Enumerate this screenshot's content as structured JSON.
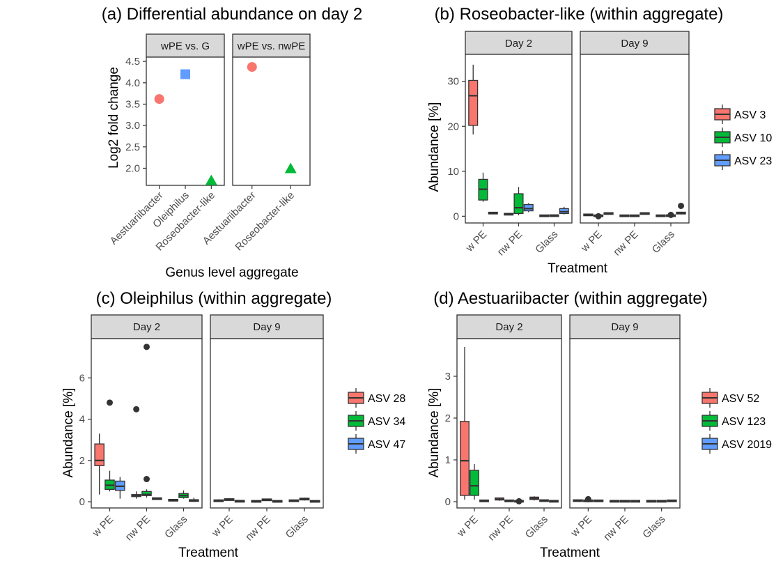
{
  "colors": {
    "red": "#F8766D",
    "green": "#00BA38",
    "blue": "#619CFF",
    "dark": "#333333",
    "strip": "#d9d9d9"
  },
  "chart_data": [
    {
      "id": "a",
      "type": "scatter",
      "title": "(a) Differential abundance on day 2",
      "xlabel": "Genus level aggregate",
      "ylabel": "Log2 fold change",
      "ylim": [
        1.6,
        4.6
      ],
      "yticks": [
        2.0,
        2.5,
        3.0,
        3.5,
        4.0,
        4.5
      ],
      "ytick_labels": [
        "2.0",
        "2.5",
        "3.0",
        "3.5",
        "4.0",
        "4.5"
      ],
      "facets": [
        {
          "label": "wPE vs. G",
          "categories": [
            "Aestuariibacter",
            "Oleiphilus",
            "Roseobacter-like"
          ],
          "points": [
            {
              "category": "Aestuariibacter",
              "y": 3.62,
              "shape": "circle",
              "color": "red"
            },
            {
              "category": "Oleiphilus",
              "y": 4.2,
              "shape": "square",
              "color": "blue"
            },
            {
              "category": "Roseobacter-like",
              "y": 1.72,
              "shape": "triangle",
              "color": "green"
            }
          ]
        },
        {
          "label": "wPE vs. nwPE",
          "categories": [
            "Aestuariibacter",
            "Roseobacter-like"
          ],
          "points": [
            {
              "category": "Aestuariibacter",
              "y": 4.37,
              "shape": "circle",
              "color": "red"
            },
            {
              "category": "Roseobacter-like",
              "y": 2.0,
              "shape": "triangle",
              "color": "green"
            }
          ]
        }
      ]
    },
    {
      "id": "b",
      "type": "box",
      "title": "(b) Roseobacter-like (within aggregate)",
      "xlabel": "Treatment",
      "ylabel": "Abundance [%]",
      "ylim": [
        -1.5,
        36
      ],
      "yticks": [
        0,
        10,
        20,
        30
      ],
      "ytick_labels": [
        "0",
        "10",
        "20",
        "30"
      ],
      "categories": [
        "w PE",
        "nw PE",
        "Glass"
      ],
      "legend": {
        "position": "right",
        "entries": [
          {
            "label": "ASV 3",
            "color": "red"
          },
          {
            "label": "ASV 10",
            "color": "green"
          },
          {
            "label": "ASV 23",
            "color": "blue"
          }
        ]
      },
      "facets": [
        {
          "label": "Day 2",
          "boxes": [
            {
              "category": "w PE",
              "series": "ASV 3",
              "min": 18.2,
              "q1": 20.2,
              "median": 26.8,
              "q3": 30.2,
              "max": 33.7
            },
            {
              "category": "w PE",
              "series": "ASV 10",
              "min": 3.2,
              "q1": 3.6,
              "median": 6,
              "q3": 8.2,
              "max": 9.7
            },
            {
              "category": "w PE",
              "series": "ASV 23",
              "min": 0.5,
              "q1": 0.6,
              "median": 0.7,
              "q3": 0.8,
              "max": 0.9
            },
            {
              "category": "nw PE",
              "series": "ASV 3",
              "min": 0.2,
              "q1": 0.3,
              "median": 0.5,
              "q3": 0.6,
              "max": 0.7
            },
            {
              "category": "nw PE",
              "series": "ASV 10",
              "min": 0.2,
              "q1": 0.6,
              "median": 1.9,
              "q3": 5,
              "max": 6.5
            },
            {
              "category": "nw PE",
              "series": "ASV 23",
              "min": 0.9,
              "q1": 1.2,
              "median": 1.7,
              "q3": 2.6,
              "max": 2.9
            },
            {
              "category": "Glass",
              "series": "ASV 3",
              "min": 0,
              "q1": 0.05,
              "median": 0.1,
              "q3": 0.15,
              "max": 0.2
            },
            {
              "category": "Glass",
              "series": "ASV 10",
              "min": 0,
              "q1": 0.05,
              "median": 0.1,
              "q3": 0.2,
              "max": 0.25
            },
            {
              "category": "Glass",
              "series": "ASV 23",
              "min": 0.4,
              "q1": 0.6,
              "median": 1,
              "q3": 1.7,
              "max": 2.1
            }
          ],
          "outliers": []
        },
        {
          "label": "Day 9",
          "boxes": [
            {
              "category": "w PE",
              "series": "ASV 3",
              "min": 0.1,
              "q1": 0.2,
              "median": 0.3,
              "q3": 0.4,
              "max": 0.5
            },
            {
              "category": "w PE",
              "series": "ASV 10",
              "min": 0,
              "q1": 0.05,
              "median": 0.1,
              "q3": 0.15,
              "max": 0.2
            },
            {
              "category": "w PE",
              "series": "ASV 23",
              "min": 0.4,
              "q1": 0.5,
              "median": 0.6,
              "q3": 0.7,
              "max": 0.8
            },
            {
              "category": "nw PE",
              "series": "ASV 3",
              "min": 0,
              "q1": 0.05,
              "median": 0.1,
              "q3": 0.15,
              "max": 0.2
            },
            {
              "category": "nw PE",
              "series": "ASV 10",
              "min": 0,
              "q1": 0.05,
              "median": 0.1,
              "q3": 0.15,
              "max": 0.2
            },
            {
              "category": "nw PE",
              "series": "ASV 23",
              "min": 0.4,
              "q1": 0.5,
              "median": 0.6,
              "q3": 0.7,
              "max": 0.8
            },
            {
              "category": "Glass",
              "series": "ASV 3",
              "min": 0,
              "q1": 0.05,
              "median": 0.1,
              "q3": 0.15,
              "max": 0.2
            },
            {
              "category": "Glass",
              "series": "ASV 10",
              "min": 0,
              "q1": 0.05,
              "median": 0.15,
              "q3": 0.2,
              "max": 0.3
            },
            {
              "category": "Glass",
              "series": "ASV 23",
              "min": 0.4,
              "q1": 0.5,
              "median": 0.7,
              "q3": 0.9,
              "max": 1
            }
          ],
          "outliers": [
            {
              "category": "w PE",
              "series": "ASV 10",
              "y": 0.0
            },
            {
              "category": "Glass",
              "series": "ASV 10",
              "y": 0.3
            },
            {
              "category": "Glass",
              "series": "ASV 23",
              "y": 2.3
            }
          ]
        }
      ]
    },
    {
      "id": "c",
      "type": "box",
      "title": "(c) Oleiphilus (within aggregate)",
      "xlabel": "Treatment",
      "ylabel": "Abundance [%]",
      "ylim": [
        -0.3,
        7.9
      ],
      "yticks": [
        0,
        2,
        4,
        6
      ],
      "ytick_labels": [
        "0",
        "2",
        "4",
        "6"
      ],
      "categories": [
        "w PE",
        "nw PE",
        "Glass"
      ],
      "legend": {
        "position": "right",
        "entries": [
          {
            "label": "ASV 28",
            "color": "red"
          },
          {
            "label": "ASV 34",
            "color": "green"
          },
          {
            "label": "ASV 47",
            "color": "blue"
          }
        ]
      },
      "facets": [
        {
          "label": "Day 2",
          "boxes": [
            {
              "category": "w PE",
              "series": "ASV 28",
              "min": 0.35,
              "q1": 1.75,
              "median": 2,
              "q3": 2.8,
              "max": 3.3
            },
            {
              "category": "w PE",
              "series": "ASV 34",
              "min": 0.5,
              "q1": 0.6,
              "median": 0.8,
              "q3": 1.05,
              "max": 1.5
            },
            {
              "category": "w PE",
              "series": "ASV 47",
              "min": 0.15,
              "q1": 0.55,
              "median": 0.75,
              "q3": 1,
              "max": 1.2
            },
            {
              "category": "nw PE",
              "series": "ASV 28",
              "min": 0.15,
              "q1": 0.25,
              "median": 0.3,
              "q3": 0.35,
              "max": 0.5
            },
            {
              "category": "nw PE",
              "series": "ASV 34",
              "min": 0.2,
              "q1": 0.3,
              "median": 0.35,
              "q3": 0.5,
              "max": 0.6
            },
            {
              "category": "nw PE",
              "series": "ASV 47",
              "min": 0.1,
              "q1": 0.12,
              "median": 0.15,
              "q3": 0.18,
              "max": 0.2
            },
            {
              "category": "Glass",
              "series": "ASV 28",
              "min": 0.02,
              "q1": 0.05,
              "median": 0.08,
              "q3": 0.1,
              "max": 0.12
            },
            {
              "category": "Glass",
              "series": "ASV 34",
              "min": 0.15,
              "q1": 0.2,
              "median": 0.3,
              "q3": 0.4,
              "max": 0.55
            },
            {
              "category": "Glass",
              "series": "ASV 47",
              "min": 0,
              "q1": 0.02,
              "median": 0.05,
              "q3": 0.1,
              "max": 0.2
            }
          ],
          "outliers": [
            {
              "category": "w PE",
              "series": "ASV 34",
              "y": 4.8
            },
            {
              "category": "nw PE",
              "series": "ASV 28",
              "y": 4.48
            },
            {
              "category": "nw PE",
              "series": "ASV 34",
              "y": 7.5
            },
            {
              "category": "nw PE",
              "series": "ASV 34",
              "y": 1.1
            }
          ]
        },
        {
          "label": "Day 9",
          "boxes": [
            {
              "category": "w PE",
              "series": "ASV 28",
              "min": 0,
              "q1": 0.02,
              "median": 0.05,
              "q3": 0.08,
              "max": 0.12
            },
            {
              "category": "w PE",
              "series": "ASV 34",
              "min": 0.05,
              "q1": 0.08,
              "median": 0.1,
              "q3": 0.13,
              "max": 0.18
            },
            {
              "category": "w PE",
              "series": "ASV 47",
              "min": 0,
              "q1": 0.01,
              "median": 0.02,
              "q3": 0.04,
              "max": 0.05
            },
            {
              "category": "nw PE",
              "series": "ASV 28",
              "min": 0,
              "q1": 0.01,
              "median": 0.02,
              "q3": 0.03,
              "max": 0.05
            },
            {
              "category": "nw PE",
              "series": "ASV 34",
              "min": 0.05,
              "q1": 0.07,
              "median": 0.1,
              "q3": 0.12,
              "max": 0.15
            },
            {
              "category": "nw PE",
              "series": "ASV 47",
              "min": 0,
              "q1": 0.01,
              "median": 0.02,
              "q3": 0.03,
              "max": 0.04
            },
            {
              "category": "Glass",
              "series": "ASV 28",
              "min": 0,
              "q1": 0.02,
              "median": 0.05,
              "q3": 0.08,
              "max": 0.1
            },
            {
              "category": "Glass",
              "series": "ASV 34",
              "min": 0.06,
              "q1": 0.1,
              "median": 0.13,
              "q3": 0.16,
              "max": 0.2
            },
            {
              "category": "Glass",
              "series": "ASV 47",
              "min": 0,
              "q1": 0.01,
              "median": 0.02,
              "q3": 0.03,
              "max": 0.05
            }
          ],
          "outliers": []
        }
      ]
    },
    {
      "id": "d",
      "type": "box",
      "title": "(d) Aestuariibacter (within aggregate)",
      "xlabel": "Treatment",
      "ylabel": "Abundance [%]",
      "ylim": [
        -0.15,
        3.9
      ],
      "yticks": [
        0,
        1,
        2,
        3
      ],
      "ytick_labels": [
        "0",
        "1",
        "2",
        "3"
      ],
      "categories": [
        "w PE",
        "nw PE",
        "Glass"
      ],
      "legend": {
        "position": "right",
        "entries": [
          {
            "label": "ASV 52",
            "color": "red"
          },
          {
            "label": "ASV 123",
            "color": "green"
          },
          {
            "label": "ASV 2019",
            "color": "blue"
          }
        ]
      },
      "facets": [
        {
          "label": "Day 2",
          "boxes": [
            {
              "category": "w PE",
              "series": "ASV 52",
              "min": 0.05,
              "q1": 0.15,
              "median": 0.98,
              "q3": 1.92,
              "max": 3.7
            },
            {
              "category": "w PE",
              "series": "ASV 123",
              "min": 0.05,
              "q1": 0.15,
              "median": 0.38,
              "q3": 0.75,
              "max": 0.9
            },
            {
              "category": "w PE",
              "series": "ASV 2019",
              "min": 0,
              "q1": 0.01,
              "median": 0.02,
              "q3": 0.03,
              "max": 0.04
            },
            {
              "category": "nw PE",
              "series": "ASV 52",
              "min": 0.02,
              "q1": 0.04,
              "median": 0.06,
              "q3": 0.09,
              "max": 0.1
            },
            {
              "category": "nw PE",
              "series": "ASV 123",
              "min": 0,
              "q1": 0.01,
              "median": 0.02,
              "q3": 0.03,
              "max": 0.04
            },
            {
              "category": "nw PE",
              "series": "ASV 2019",
              "min": 0,
              "q1": 0.005,
              "median": 0.01,
              "q3": 0.015,
              "max": 0.02
            },
            {
              "category": "Glass",
              "series": "ASV 52",
              "min": 0.03,
              "q1": 0.05,
              "median": 0.08,
              "q3": 0.11,
              "max": 0.13
            },
            {
              "category": "Glass",
              "series": "ASV 123",
              "min": 0,
              "q1": 0.01,
              "median": 0.03,
              "q3": 0.04,
              "max": 0.05
            },
            {
              "category": "Glass",
              "series": "ASV 2019",
              "min": 0,
              "q1": 0.005,
              "median": 0.01,
              "q3": 0.015,
              "max": 0.02
            }
          ],
          "outliers": [
            {
              "category": "nw PE",
              "series": "ASV 2019",
              "y": 0.01
            }
          ]
        },
        {
          "label": "Day 9",
          "boxes": [
            {
              "category": "w PE",
              "series": "ASV 52",
              "min": 0,
              "q1": 0.01,
              "median": 0.02,
              "q3": 0.04,
              "max": 0.05
            },
            {
              "category": "w PE",
              "series": "ASV 123",
              "min": 0,
              "q1": 0.01,
              "median": 0.02,
              "q3": 0.03,
              "max": 0.04
            },
            {
              "category": "w PE",
              "series": "ASV 2019",
              "min": 0,
              "q1": 0.01,
              "median": 0.02,
              "q3": 0.03,
              "max": 0.04
            },
            {
              "category": "nw PE",
              "series": "ASV 52",
              "min": 0,
              "q1": 0.005,
              "median": 0.01,
              "q3": 0.015,
              "max": 0.02
            },
            {
              "category": "nw PE",
              "series": "ASV 123",
              "min": 0,
              "q1": 0.005,
              "median": 0.01,
              "q3": 0.015,
              "max": 0.02
            },
            {
              "category": "nw PE",
              "series": "ASV 2019",
              "min": 0,
              "q1": 0.005,
              "median": 0.01,
              "q3": 0.015,
              "max": 0.02
            },
            {
              "category": "Glass",
              "series": "ASV 52",
              "min": 0,
              "q1": 0.005,
              "median": 0.01,
              "q3": 0.015,
              "max": 0.02
            },
            {
              "category": "Glass",
              "series": "ASV 123",
              "min": 0,
              "q1": 0.005,
              "median": 0.01,
              "q3": 0.015,
              "max": 0.02
            },
            {
              "category": "Glass",
              "series": "ASV 2019",
              "min": 0,
              "q1": 0.01,
              "median": 0.02,
              "q3": 0.03,
              "max": 0.04
            }
          ],
          "outliers": [
            {
              "category": "w PE",
              "series": "ASV 123",
              "y": 0.06
            }
          ]
        }
      ]
    }
  ]
}
